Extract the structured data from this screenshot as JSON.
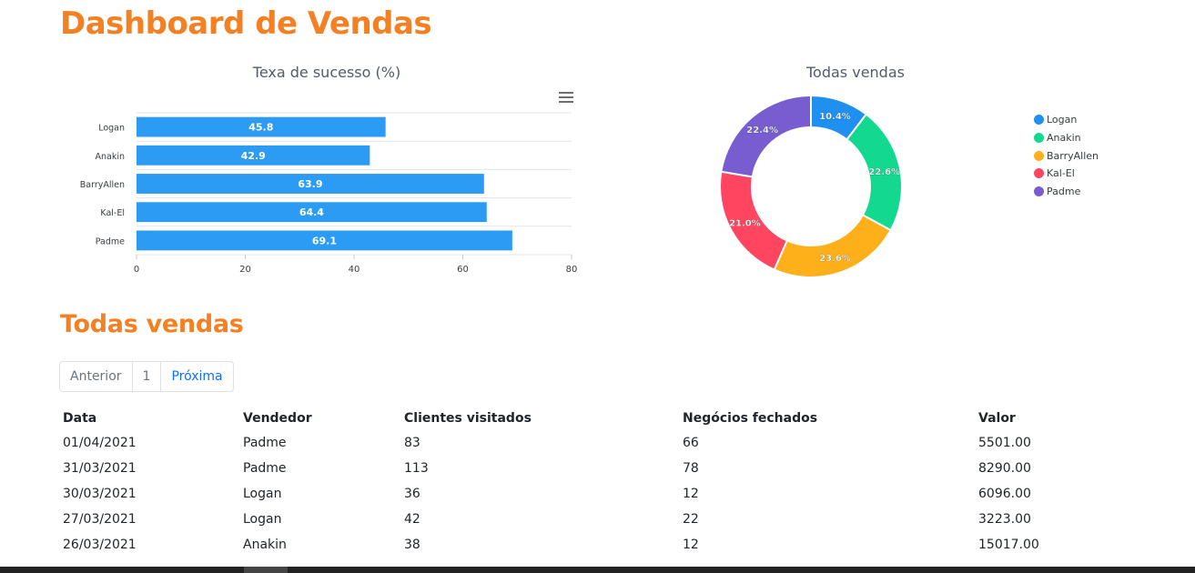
{
  "page": {
    "title": "Dashboard de Vendas",
    "section_title": "Todas vendas"
  },
  "colors": {
    "accent": "#f48024",
    "bar": "#2b9bf4",
    "series": [
      "#1f8ff0",
      "#13d990",
      "#feb01a",
      "#ff4560",
      "#775dd0"
    ]
  },
  "pagination": {
    "prev": "Anterior",
    "page": "1",
    "next": "Próxima"
  },
  "table": {
    "headers": [
      "Data",
      "Vendedor",
      "Clientes visitados",
      "Negócios fechados",
      "Valor"
    ],
    "rows": [
      [
        "01/04/2021",
        "Padme",
        "83",
        "66",
        "5501.00"
      ],
      [
        "31/03/2021",
        "Padme",
        "113",
        "78",
        "8290.00"
      ],
      [
        "30/03/2021",
        "Logan",
        "36",
        "12",
        "6096.00"
      ],
      [
        "27/03/2021",
        "Logan",
        "42",
        "22",
        "3223.00"
      ],
      [
        "26/03/2021",
        "Anakin",
        "38",
        "12",
        "15017.00"
      ]
    ]
  },
  "chart_data": [
    {
      "type": "bar",
      "orientation": "horizontal",
      "title": "Texa de sucesso (%)",
      "categories": [
        "Logan",
        "Anakin",
        "BarryAllen",
        "Kal-El",
        "Padme"
      ],
      "values": [
        45.8,
        42.9,
        63.9,
        64.4,
        69.1
      ],
      "xlim": [
        0,
        80
      ],
      "xticks": [
        "0",
        "20",
        "40",
        "60",
        "80"
      ],
      "xlabel": "",
      "ylabel": "",
      "grid": true
    },
    {
      "type": "pie",
      "variant": "donut",
      "title": "Todas vendas",
      "categories": [
        "Logan",
        "Anakin",
        "BarryAllen",
        "Kal-El",
        "Padme"
      ],
      "values": [
        10.4,
        22.6,
        23.6,
        21.0,
        22.4
      ],
      "labels": [
        "10.4%",
        "22.6%",
        "23.6%",
        "21.0%",
        "22.4%"
      ],
      "legend": "right"
    }
  ]
}
